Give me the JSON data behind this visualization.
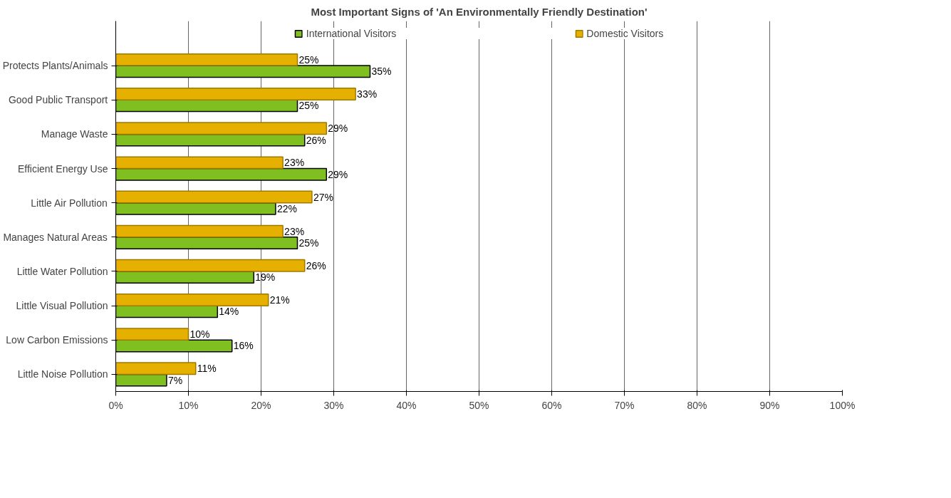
{
  "chart_data": {
    "type": "bar",
    "orientation": "horizontal",
    "title": "Most Important Signs of 'An Environmentally Friendly Destination'",
    "categories": [
      "Protects Plants/Animals",
      "Good Public Transport",
      "Manage Waste",
      "Efficient Energy Use",
      "Little Air Pollution",
      "Manages Natural Areas",
      "Little Water Pollution",
      "Little Visual Pollution",
      "Low Carbon Emissions",
      "Little Noise Pollution"
    ],
    "series": [
      {
        "name": "International Visitors",
        "color": "#80bf20",
        "values": [
          35,
          25,
          26,
          29,
          22,
          25,
          19,
          14,
          16,
          7
        ],
        "value_labels": [
          "35%",
          "25%",
          "26%",
          "29%",
          "22%",
          "25%",
          "19%",
          "14%",
          "16%",
          "7%"
        ]
      },
      {
        "name": "Domestic Visitors",
        "color": "#e6b000",
        "values": [
          25,
          33,
          29,
          23,
          27,
          23,
          26,
          21,
          10,
          11
        ],
        "value_labels": [
          "25%",
          "33%",
          "29%",
          "23%",
          "27%",
          "23%",
          "26%",
          "21%",
          "10%",
          "11%"
        ]
      }
    ],
    "xlim": [
      0,
      100
    ],
    "xticks": [
      {
        "value": 0,
        "label": "0%"
      },
      {
        "value": 10,
        "label": "10%"
      },
      {
        "value": 20,
        "label": "20%"
      },
      {
        "value": 30,
        "label": "30%"
      },
      {
        "value": 40,
        "label": "40%"
      },
      {
        "value": 50,
        "label": "50%"
      },
      {
        "value": 60,
        "label": "60%"
      },
      {
        "value": 70,
        "label": "70%"
      },
      {
        "value": 80,
        "label": "80%"
      },
      {
        "value": 90,
        "label": "90%"
      },
      {
        "value": 100,
        "label": "100%"
      }
    ],
    "grid": "x",
    "legend": "top"
  }
}
